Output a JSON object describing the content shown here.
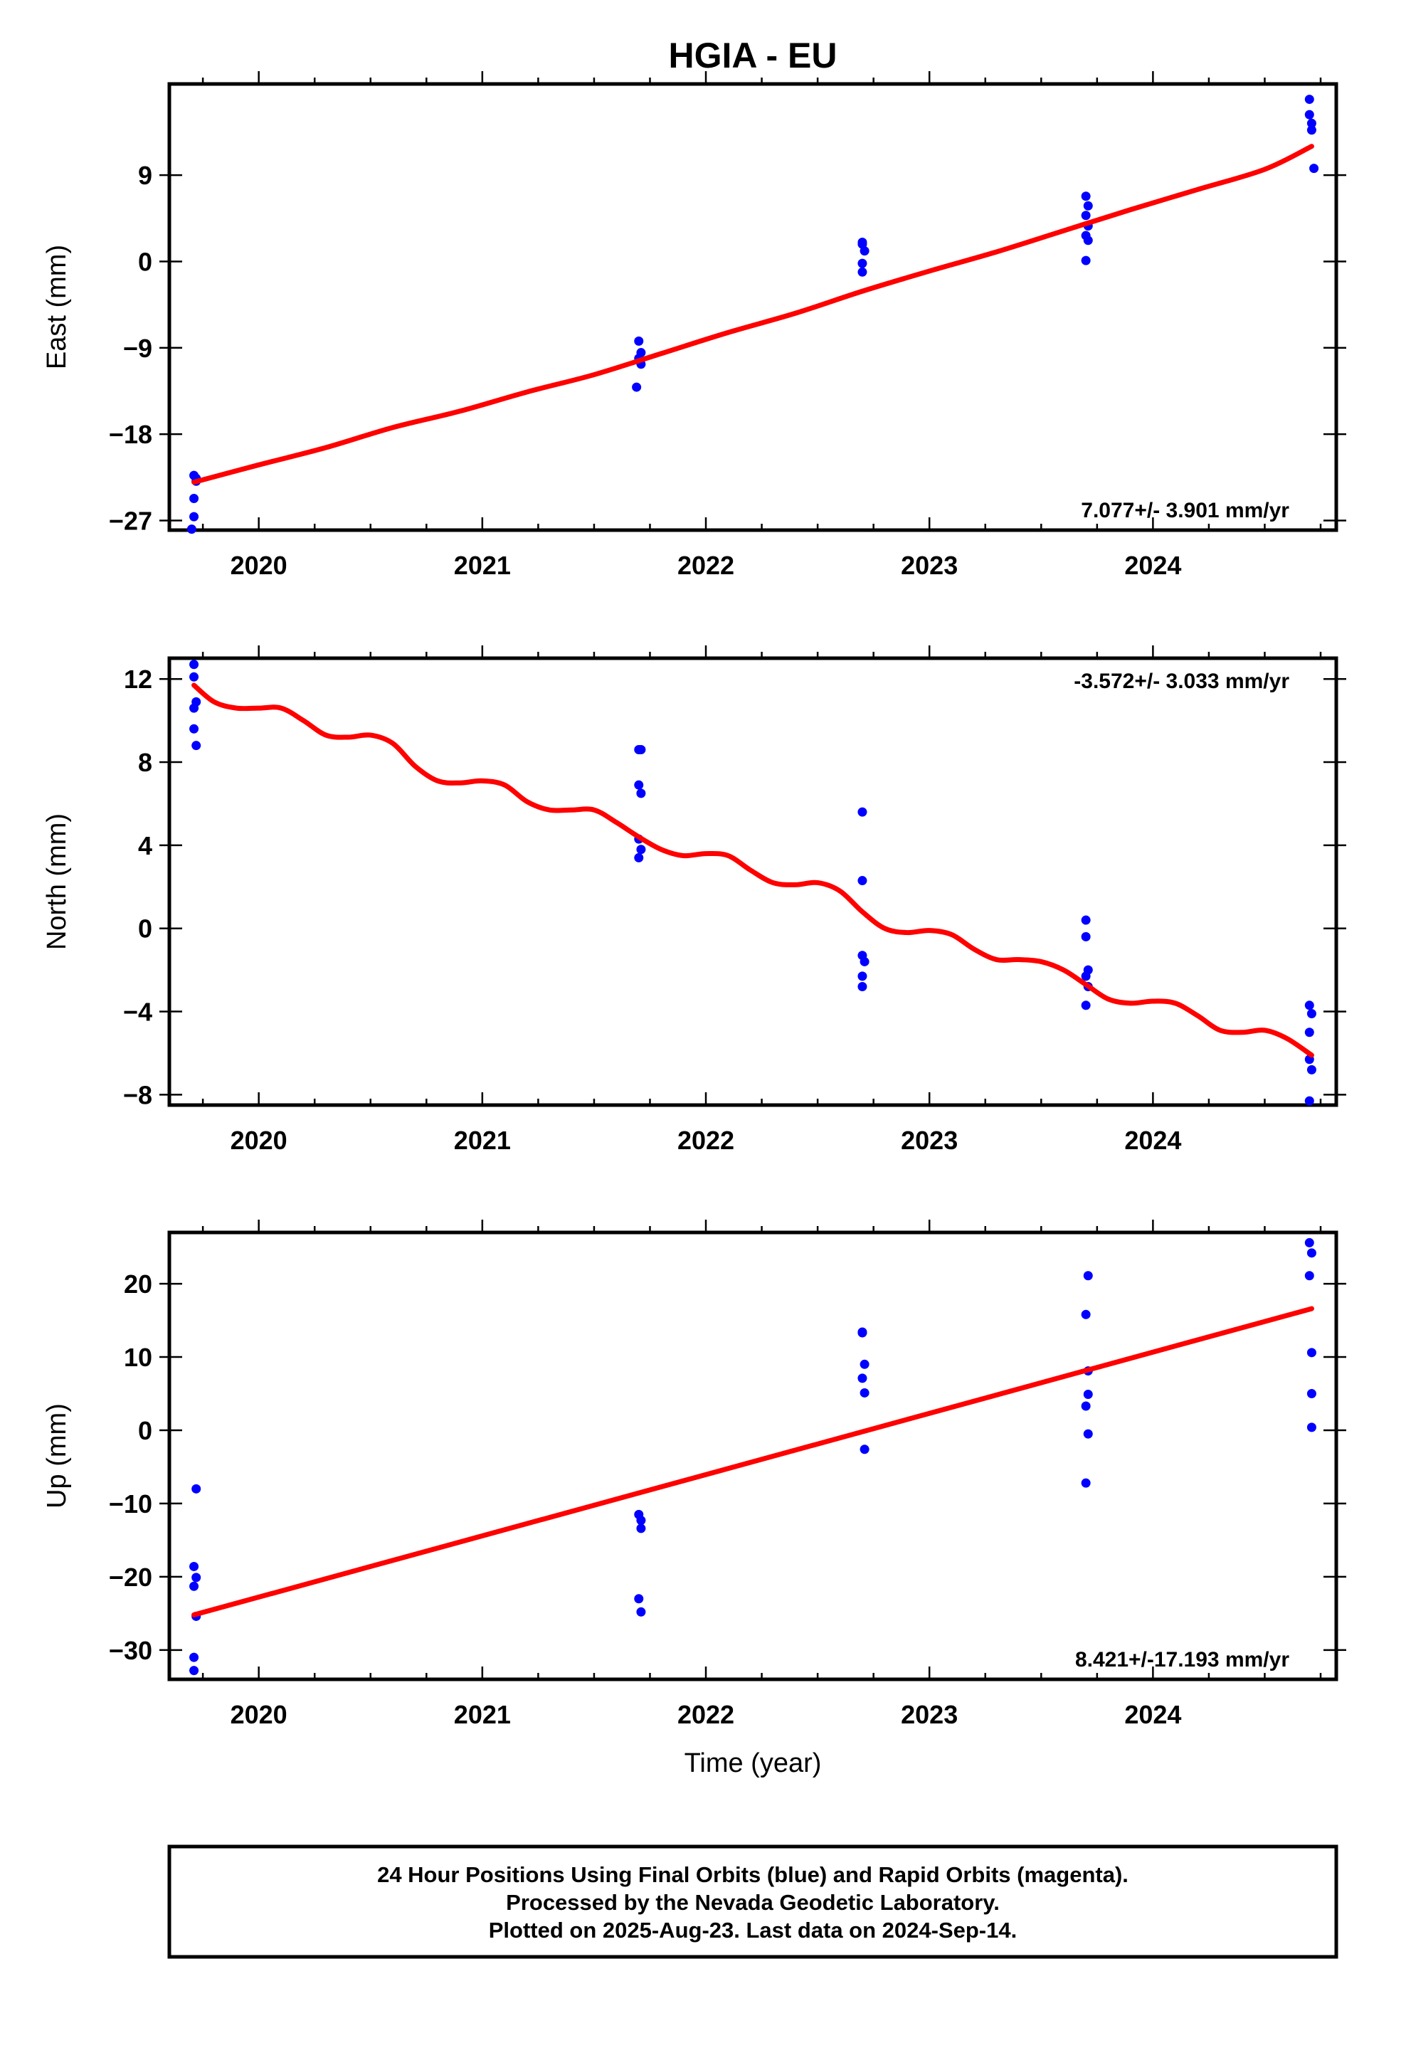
{
  "title": "HGIA - EU",
  "colors": {
    "final_orbits": "#0000ff",
    "model_fit": "#ff0000",
    "frame": "#000000"
  },
  "chart_data": [
    {
      "type": "scatter",
      "ylabel": "East (mm)",
      "xlabel": "",
      "xlim": [
        2019.6,
        2024.82
      ],
      "ylim": [
        -28,
        18.5
      ],
      "x_ticks": [
        2020,
        2021,
        2022,
        2023,
        2024
      ],
      "y_ticks": [
        -27,
        -18,
        -9,
        0,
        9
      ],
      "y_tick_labels": [
        "−27",
        "−18",
        "−9",
        "0",
        "9"
      ],
      "rate_label": "7.077+/- 3.901 mm/yr",
      "rate_position": "bottom-right",
      "series": [
        {
          "kind": "points",
          "x": [
            2019.71,
            2019.72,
            2019.71,
            2019.71,
            2019.7,
            2019.72,
            2021.7,
            2021.71,
            2021.7,
            2021.71,
            2021.69,
            2022.7,
            2022.71,
            2022.7,
            2022.7,
            2022.7,
            2023.7,
            2023.71,
            2023.7,
            2023.71,
            2023.7,
            2023.71,
            2023.7,
            2024.7,
            2024.7,
            2024.71,
            2024.71,
            2024.72
          ],
          "y": [
            -22.3,
            -22.9,
            -24.7,
            -26.6,
            -27.9,
            -22.6,
            -8.3,
            -9.5,
            -10.1,
            -10.7,
            -13.1,
            1.8,
            1.1,
            -0.2,
            -1.1,
            2.0,
            6.8,
            5.8,
            4.8,
            3.7,
            2.7,
            2.2,
            0.1,
            16.9,
            15.3,
            14.4,
            13.7,
            9.7
          ]
        },
        {
          "kind": "fit",
          "x": [
            2019.71,
            2020.0,
            2020.3,
            2020.6,
            2020.9,
            2021.2,
            2021.5,
            2021.8,
            2022.1,
            2022.4,
            2022.7,
            2023.0,
            2023.3,
            2023.6,
            2023.9,
            2024.2,
            2024.5,
            2024.71
          ],
          "y": [
            -23.0,
            -21.2,
            -19.4,
            -17.3,
            -15.6,
            -13.6,
            -11.8,
            -9.6,
            -7.4,
            -5.4,
            -3.1,
            -1.0,
            1.0,
            3.2,
            5.4,
            7.5,
            9.6,
            12.0
          ]
        }
      ]
    },
    {
      "type": "scatter",
      "ylabel": "North (mm)",
      "xlabel": "",
      "xlim": [
        2019.6,
        2024.82
      ],
      "ylim": [
        -8.5,
        13.0
      ],
      "x_ticks": [
        2020,
        2021,
        2022,
        2023,
        2024
      ],
      "y_ticks": [
        -8,
        -4,
        0,
        4,
        8,
        12
      ],
      "y_tick_labels": [
        "−8",
        "−4",
        "0",
        "4",
        "8",
        "12"
      ],
      "rate_label": "-3.572+/- 3.033 mm/yr",
      "rate_position": "top-right",
      "series": [
        {
          "kind": "points",
          "x": [
            2019.71,
            2019.71,
            2019.72,
            2019.71,
            2019.71,
            2019.72,
            2021.7,
            2021.71,
            2021.7,
            2021.71,
            2021.7,
            2021.71,
            2021.7,
            2022.7,
            2022.7,
            2022.7,
            2022.71,
            2022.7,
            2022.7,
            2023.7,
            2023.7,
            2023.71,
            2023.7,
            2023.71,
            2023.7,
            2024.7,
            2024.71,
            2024.7,
            2024.7,
            2024.71,
            2024.7
          ],
          "y": [
            12.7,
            12.1,
            10.9,
            10.6,
            9.6,
            8.8,
            8.6,
            8.6,
            6.9,
            6.5,
            4.3,
            3.8,
            3.4,
            5.6,
            2.3,
            -1.3,
            -1.6,
            -2.3,
            -2.8,
            0.4,
            -0.4,
            -2.0,
            -2.3,
            -2.8,
            -3.7,
            -3.7,
            -4.1,
            -5.0,
            -6.3,
            -6.8,
            -8.3
          ]
        },
        {
          "kind": "fit",
          "x": [
            2019.71,
            2019.8,
            2019.9,
            2020.0,
            2020.1,
            2020.2,
            2020.3,
            2020.4,
            2020.5,
            2020.6,
            2020.7,
            2020.8,
            2020.9,
            2021.0,
            2021.1,
            2021.2,
            2021.3,
            2021.4,
            2021.5,
            2021.6,
            2021.7,
            2021.8,
            2021.9,
            2022.0,
            2022.1,
            2022.2,
            2022.3,
            2022.4,
            2022.5,
            2022.6,
            2022.7,
            2022.8,
            2022.9,
            2023.0,
            2023.1,
            2023.2,
            2023.3,
            2023.4,
            2023.5,
            2023.6,
            2023.7,
            2023.8,
            2023.9,
            2024.0,
            2024.1,
            2024.2,
            2024.3,
            2024.4,
            2024.5,
            2024.6,
            2024.71
          ],
          "y": [
            11.7,
            10.9,
            10.6,
            10.6,
            10.6,
            10.0,
            9.3,
            9.2,
            9.3,
            8.9,
            7.8,
            7.1,
            7.0,
            7.1,
            6.9,
            6.1,
            5.7,
            5.7,
            5.7,
            5.1,
            4.4,
            3.8,
            3.5,
            3.6,
            3.5,
            2.8,
            2.2,
            2.1,
            2.2,
            1.8,
            0.8,
            0.0,
            -0.2,
            -0.1,
            -0.3,
            -1.0,
            -1.5,
            -1.5,
            -1.6,
            -2.0,
            -2.7,
            -3.4,
            -3.6,
            -3.5,
            -3.6,
            -4.2,
            -4.9,
            -5.0,
            -4.9,
            -5.3,
            -6.1
          ]
        }
      ]
    },
    {
      "type": "scatter",
      "ylabel": "Up (mm)",
      "xlabel": "Time (year)",
      "xlim": [
        2019.6,
        2024.82
      ],
      "ylim": [
        -34,
        27
      ],
      "x_ticks": [
        2020,
        2021,
        2022,
        2023,
        2024
      ],
      "y_ticks": [
        -30,
        -20,
        -10,
        0,
        10,
        20
      ],
      "y_tick_labels": [
        "−30",
        "−20",
        "−10",
        "0",
        "10",
        "20"
      ],
      "rate_label": "8.421+/-17.193 mm/yr",
      "rate_position": "bottom-right",
      "series": [
        {
          "kind": "points",
          "x": [
            2019.72,
            2019.71,
            2019.72,
            2019.71,
            2019.72,
            2019.71,
            2019.71,
            2021.7,
            2021.71,
            2021.71,
            2021.7,
            2021.71,
            2022.7,
            2022.71,
            2022.7,
            2022.71,
            2022.7,
            2022.71,
            2023.71,
            2023.7,
            2023.71,
            2023.71,
            2023.7,
            2023.71,
            2023.7,
            2024.7,
            2024.71,
            2024.7,
            2024.71,
            2024.71,
            2024.71
          ],
          "y": [
            -8.0,
            -18.6,
            -20.1,
            -21.3,
            -25.4,
            -31.0,
            -32.8,
            -11.5,
            -12.3,
            -13.4,
            -23.0,
            -24.8,
            13.3,
            9.0,
            7.1,
            5.1,
            13.4,
            -2.6,
            21.1,
            15.8,
            8.1,
            4.9,
            3.3,
            -0.5,
            -7.2,
            25.6,
            24.2,
            21.1,
            10.6,
            5.0,
            0.4
          ]
        },
        {
          "kind": "fit",
          "x": [
            2019.71,
            2024.71
          ],
          "y": [
            -25.2,
            16.6
          ]
        }
      ]
    }
  ],
  "footer": {
    "line1": "24 Hour Positions Using Final Orbits (blue) and Rapid Orbits (magenta).",
    "line2": "Processed by the Nevada Geodetic Laboratory.",
    "line3": "Plotted on 2025-Aug-23. Last data on 2024-Sep-14."
  }
}
